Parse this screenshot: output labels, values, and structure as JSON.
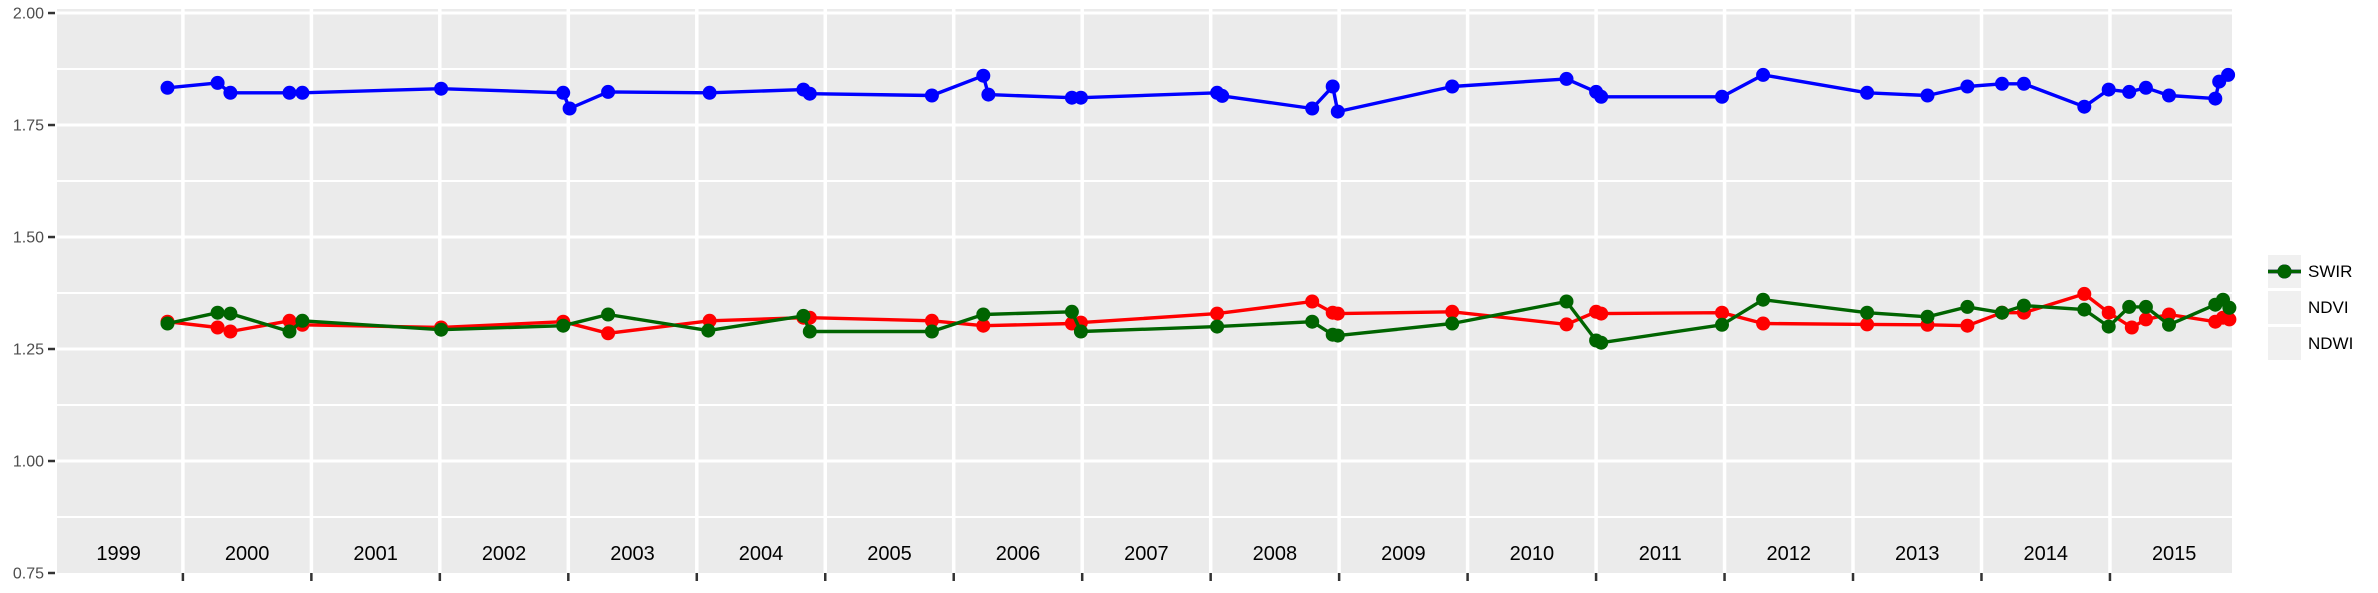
{
  "chart_data": {
    "type": "line",
    "title": "",
    "xlabel": "",
    "ylabel": "",
    "x_axis": {
      "domain": [
        1999.02,
        2015.95
      ],
      "gridline_years": [
        2000,
        2001,
        2002,
        2003,
        2004,
        2005,
        2006,
        2007,
        2008,
        2009,
        2010,
        2011,
        2012,
        2013,
        2014,
        2015
      ],
      "tick_years": [
        2000,
        2001,
        2002,
        2003,
        2004,
        2005,
        2006,
        2007,
        2008,
        2009,
        2010,
        2011,
        2012,
        2013,
        2014,
        2015
      ],
      "year_labels": [
        "1999",
        "2000",
        "2001",
        "2002",
        "2003",
        "2004",
        "2005",
        "2006",
        "2007",
        "2008",
        "2009",
        "2010",
        "2011",
        "2012",
        "2013",
        "2014",
        "2015"
      ],
      "label_start_year": 1999,
      "label_center_offset": 0.5
    },
    "y_axis": {
      "domain": [
        0.75,
        2.009
      ],
      "ticks": [
        {
          "value": 2.0,
          "label": "2.00"
        },
        {
          "value": 1.75,
          "label": "1.75"
        },
        {
          "value": 1.5,
          "label": "1.50"
        },
        {
          "value": 1.25,
          "label": "1.25"
        },
        {
          "value": 1.0,
          "label": "1.00"
        },
        {
          "value": 0.75,
          "label": "0.75"
        }
      ],
      "minor_gridlines": [
        1.875,
        1.625,
        1.375,
        1.125,
        0.875
      ]
    },
    "grid": true,
    "legend_position": "right",
    "series": [
      {
        "name": "SWIR",
        "color": "#FF0000",
        "points": [
          [
            1999.88,
            1.311
          ],
          [
            2000.27,
            1.298
          ],
          [
            2000.37,
            1.289
          ],
          [
            2000.83,
            1.313
          ],
          [
            2000.93,
            1.304
          ],
          [
            2002.01,
            1.298
          ],
          [
            2002.96,
            1.311
          ],
          [
            2003.31,
            1.285
          ],
          [
            2004.1,
            1.313
          ],
          [
            2004.83,
            1.32
          ],
          [
            2004.88,
            1.32
          ],
          [
            2005.83,
            1.313
          ],
          [
            2006.23,
            1.302
          ],
          [
            2006.92,
            1.307
          ],
          [
            2006.99,
            1.309
          ],
          [
            2008.05,
            1.329
          ],
          [
            2008.79,
            1.356
          ],
          [
            2008.95,
            1.331
          ],
          [
            2008.99,
            1.329
          ],
          [
            2009.88,
            1.333
          ],
          [
            2010.77,
            1.305
          ],
          [
            2011.0,
            1.333
          ],
          [
            2011.04,
            1.329
          ],
          [
            2011.98,
            1.331
          ],
          [
            2012.3,
            1.307
          ],
          [
            2013.11,
            1.305
          ],
          [
            2013.58,
            1.304
          ],
          [
            2013.89,
            1.302
          ],
          [
            2014.16,
            1.331
          ],
          [
            2014.33,
            1.331
          ],
          [
            2014.8,
            1.373
          ],
          [
            2014.99,
            1.331
          ],
          [
            2015.17,
            1.298
          ],
          [
            2015.28,
            1.316
          ],
          [
            2015.46,
            1.327
          ],
          [
            2015.82,
            1.311
          ],
          [
            2015.88,
            1.32
          ],
          [
            2015.93,
            1.316
          ]
        ]
      },
      {
        "name": "NDVI",
        "color": "#0000FF",
        "points": [
          [
            1999.88,
            1.833
          ],
          [
            2000.27,
            1.844
          ],
          [
            2000.37,
            1.822
          ],
          [
            2000.83,
            1.822
          ],
          [
            2000.93,
            1.822
          ],
          [
            2002.01,
            1.831
          ],
          [
            2002.96,
            1.822
          ],
          [
            2003.01,
            1.787
          ],
          [
            2003.31,
            1.824
          ],
          [
            2004.1,
            1.822
          ],
          [
            2004.83,
            1.829
          ],
          [
            2004.88,
            1.82
          ],
          [
            2005.83,
            1.816
          ],
          [
            2006.23,
            1.86
          ],
          [
            2006.27,
            1.818
          ],
          [
            2006.92,
            1.811
          ],
          [
            2006.99,
            1.811
          ],
          [
            2008.05,
            1.822
          ],
          [
            2008.09,
            1.815
          ],
          [
            2008.79,
            1.787
          ],
          [
            2008.95,
            1.836
          ],
          [
            2008.99,
            1.78
          ],
          [
            2009.88,
            1.836
          ],
          [
            2010.77,
            1.853
          ],
          [
            2011.0,
            1.824
          ],
          [
            2011.04,
            1.813
          ],
          [
            2011.98,
            1.813
          ],
          [
            2012.3,
            1.862
          ],
          [
            2013.11,
            1.822
          ],
          [
            2013.58,
            1.816
          ],
          [
            2013.89,
            1.836
          ],
          [
            2014.16,
            1.842
          ],
          [
            2014.33,
            1.842
          ],
          [
            2014.8,
            1.791
          ],
          [
            2014.99,
            1.829
          ],
          [
            2015.15,
            1.824
          ],
          [
            2015.28,
            1.833
          ],
          [
            2015.46,
            1.816
          ],
          [
            2015.82,
            1.809
          ],
          [
            2015.85,
            1.847
          ],
          [
            2015.92,
            1.862
          ]
        ]
      },
      {
        "name": "NDWI",
        "color": "#006400",
        "points": [
          [
            1999.88,
            1.307
          ],
          [
            2000.27,
            1.331
          ],
          [
            2000.37,
            1.329
          ],
          [
            2000.83,
            1.289
          ],
          [
            2000.93,
            1.313
          ],
          [
            2002.01,
            1.293
          ],
          [
            2002.96,
            1.302
          ],
          [
            2003.31,
            1.327
          ],
          [
            2004.09,
            1.291
          ],
          [
            2004.83,
            1.324
          ],
          [
            2004.88,
            1.289
          ],
          [
            2005.83,
            1.289
          ],
          [
            2006.23,
            1.327
          ],
          [
            2006.92,
            1.333
          ],
          [
            2006.99,
            1.289
          ],
          [
            2008.05,
            1.3
          ],
          [
            2008.79,
            1.311
          ],
          [
            2008.95,
            1.282
          ],
          [
            2008.99,
            1.28
          ],
          [
            2009.88,
            1.307
          ],
          [
            2010.77,
            1.356
          ],
          [
            2011.0,
            1.269
          ],
          [
            2011.04,
            1.264
          ],
          [
            2011.98,
            1.304
          ],
          [
            2012.3,
            1.36
          ],
          [
            2013.11,
            1.331
          ],
          [
            2013.58,
            1.322
          ],
          [
            2013.89,
            1.344
          ],
          [
            2014.16,
            1.331
          ],
          [
            2014.33,
            1.347
          ],
          [
            2014.8,
            1.338
          ],
          [
            2014.99,
            1.3
          ],
          [
            2015.15,
            1.344
          ],
          [
            2015.28,
            1.344
          ],
          [
            2015.46,
            1.304
          ],
          [
            2015.82,
            1.349
          ],
          [
            2015.88,
            1.36
          ],
          [
            2015.93,
            1.342
          ]
        ]
      }
    ],
    "legend": {
      "entries": [
        "SWIR",
        "NDVI",
        "NDWI"
      ]
    }
  },
  "style": {
    "panel_bg": "#EBEBEB",
    "grid_color": "#FFFFFF",
    "axis_text_color": "#4D4D4D",
    "tick_color": "#333333",
    "year_label_color": "#000000",
    "legend_key_bg": "#F0F0F0",
    "page_bg": "#FFFFFF"
  }
}
